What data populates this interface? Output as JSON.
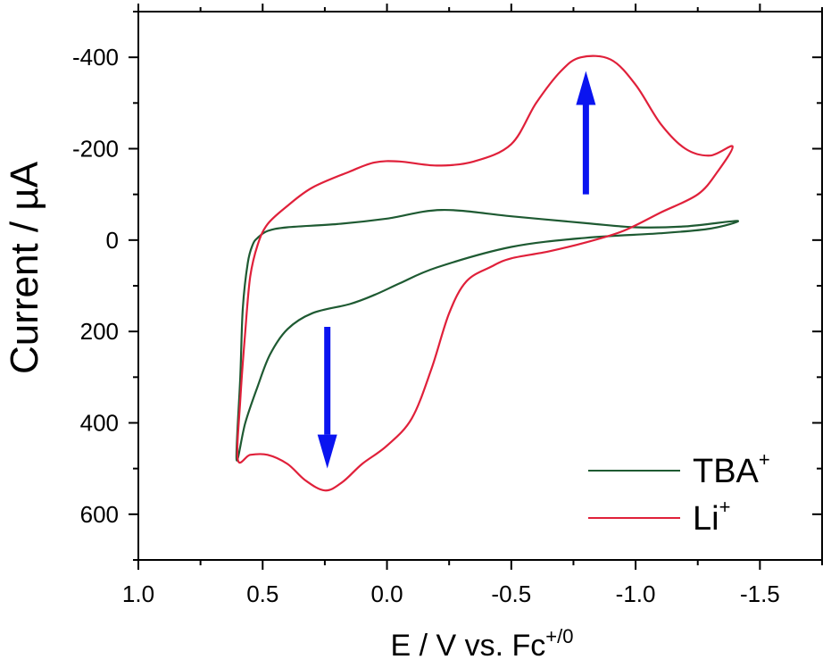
{
  "chart_data": {
    "type": "line",
    "xlabel": "E / V vs. Fc",
    "xlabel_superscript": "+/0",
    "ylabel": "Current / µA",
    "xlim": [
      1.0,
      -1.75
    ],
    "ylim": [
      700,
      -500
    ],
    "x_ticks": [
      {
        "value": 1.0,
        "label": "1.0"
      },
      {
        "value": 0.5,
        "label": "0.5"
      },
      {
        "value": 0.0,
        "label": "0.0"
      },
      {
        "value": -0.5,
        "label": "-0.5"
      },
      {
        "value": -1.0,
        "label": "-1.0"
      },
      {
        "value": -1.5,
        "label": "-1.5"
      }
    ],
    "y_ticks": [
      {
        "value": -400,
        "label": "-400"
      },
      {
        "value": -200,
        "label": "-200"
      },
      {
        "value": 0,
        "label": "0"
      },
      {
        "value": 200,
        "label": "200"
      },
      {
        "value": 400,
        "label": "400"
      },
      {
        "value": 600,
        "label": "600"
      }
    ],
    "legend_position": "bottom-right",
    "series": [
      {
        "name": "TBA",
        "name_superscript": "+",
        "color": "#1e5a32",
        "points": [
          [
            -1.41,
            -42
          ],
          [
            -1.2,
            -30
          ],
          [
            -1.0,
            -28
          ],
          [
            -0.8,
            -37
          ],
          [
            -0.5,
            -52
          ],
          [
            -0.22,
            -66
          ],
          [
            0.0,
            -47
          ],
          [
            0.2,
            -35
          ],
          [
            0.4,
            -28
          ],
          [
            0.48,
            -20
          ],
          [
            0.52,
            -5
          ],
          [
            0.54,
            10
          ],
          [
            0.56,
            50
          ],
          [
            0.58,
            150
          ],
          [
            0.59,
            300
          ],
          [
            0.605,
            480
          ],
          [
            0.57,
            400
          ],
          [
            0.52,
            320
          ],
          [
            0.47,
            250
          ],
          [
            0.4,
            195
          ],
          [
            0.3,
            160
          ],
          [
            0.15,
            140
          ],
          [
            0.05,
            120
          ],
          [
            -0.05,
            95
          ],
          [
            -0.2,
            60
          ],
          [
            -0.5,
            15
          ],
          [
            -0.8,
            -5
          ],
          [
            -1.1,
            -15
          ],
          [
            -1.3,
            -25
          ],
          [
            -1.41,
            -42
          ]
        ]
      },
      {
        "name": "Li",
        "name_superscript": "+",
        "color": "#e0203a",
        "points": [
          [
            -1.39,
            -205
          ],
          [
            -1.3,
            -185
          ],
          [
            -1.2,
            -200
          ],
          [
            -1.1,
            -255
          ],
          [
            -1.0,
            -340
          ],
          [
            -0.9,
            -395
          ],
          [
            -0.78,
            -400
          ],
          [
            -0.7,
            -370
          ],
          [
            -0.6,
            -300
          ],
          [
            -0.5,
            -210
          ],
          [
            -0.35,
            -172
          ],
          [
            -0.2,
            -163
          ],
          [
            -0.05,
            -172
          ],
          [
            0.05,
            -170
          ],
          [
            0.15,
            -150
          ],
          [
            0.3,
            -115
          ],
          [
            0.4,
            -75
          ],
          [
            0.48,
            -35
          ],
          [
            0.52,
            10
          ],
          [
            0.55,
            80
          ],
          [
            0.57,
            200
          ],
          [
            0.59,
            350
          ],
          [
            0.6,
            480
          ],
          [
            0.55,
            470
          ],
          [
            0.48,
            470
          ],
          [
            0.4,
            490
          ],
          [
            0.33,
            525
          ],
          [
            0.25,
            548
          ],
          [
            0.18,
            530
          ],
          [
            0.1,
            490
          ],
          [
            0.0,
            450
          ],
          [
            -0.1,
            390
          ],
          [
            -0.18,
            280
          ],
          [
            -0.25,
            160
          ],
          [
            -0.32,
            90
          ],
          [
            -0.42,
            58
          ],
          [
            -0.5,
            40
          ],
          [
            -0.65,
            25
          ],
          [
            -0.8,
            5
          ],
          [
            -0.95,
            -20
          ],
          [
            -1.1,
            -60
          ],
          [
            -1.25,
            -100
          ],
          [
            -1.33,
            -150
          ],
          [
            -1.39,
            -205
          ]
        ]
      }
    ],
    "annotations": [
      {
        "type": "arrow",
        "color": "#0a14f0",
        "direction": "up",
        "x": -0.8,
        "y_from": -100,
        "y_to": -370
      },
      {
        "type": "arrow",
        "color": "#0a14f0",
        "direction": "down",
        "x": 0.24,
        "y_from": 190,
        "y_to": 500
      }
    ]
  }
}
